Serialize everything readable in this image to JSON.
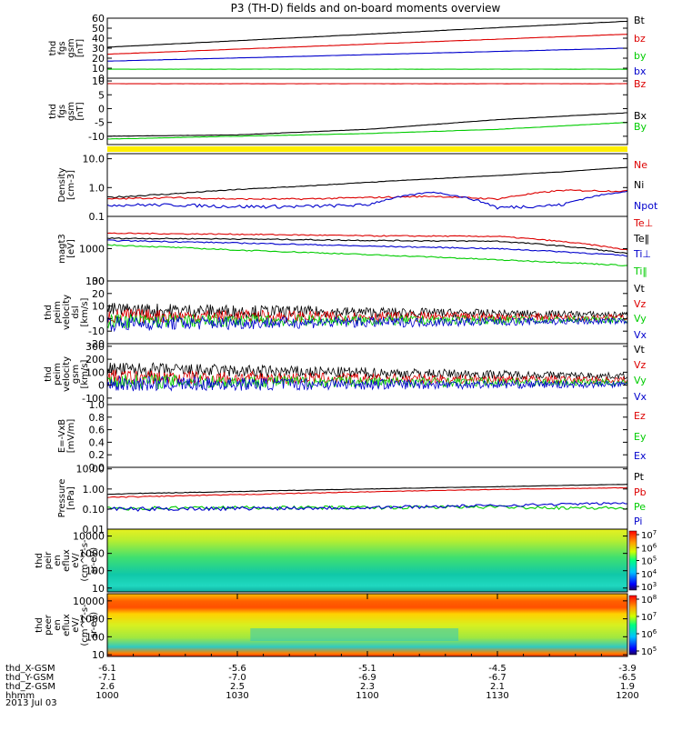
{
  "title": "P3 (TH-D) fields and on-board moments overview",
  "colors": {
    "black": "#000000",
    "red": "#dd0000",
    "green": "#00cc00",
    "blue": "#0000cc",
    "yellow": "#ffee00"
  },
  "chart_data": [
    {
      "type": "line",
      "panel": "fgs-magnitude",
      "ylabel": [
        "thd",
        "fgs",
        "gsm",
        "[nT]"
      ],
      "ylim": [
        0,
        60
      ],
      "yticks": [
        "0",
        "10",
        "20",
        "30",
        "40",
        "50",
        "60"
      ],
      "legend": [
        "Bt",
        "bz",
        "by",
        "bx"
      ],
      "x": [
        10.0,
        12.0
      ],
      "series": [
        {
          "name": "Bt",
          "values": [
            31,
            57
          ]
        },
        {
          "name": "bz",
          "values": [
            24,
            44
          ]
        },
        {
          "name": "bx",
          "values": [
            17,
            30
          ]
        },
        {
          "name": "by",
          "values": [
            9,
            9
          ]
        }
      ]
    },
    {
      "type": "line",
      "panel": "fgs-despun",
      "ylabel": [
        "thd",
        "fgs",
        "gsm",
        "[nT]"
      ],
      "ylim": [
        -13,
        11
      ],
      "yticks": [
        "-10",
        "-5",
        "0",
        "5",
        "10"
      ],
      "legend": [
        "Bz",
        "Bx",
        "By"
      ],
      "x": [
        10.0,
        10.5,
        11.0,
        11.5,
        12.0
      ],
      "series": [
        {
          "name": "Bz",
          "values": [
            9,
            9,
            9,
            9,
            9
          ]
        },
        {
          "name": "Bx",
          "values": [
            -10,
            -9.5,
            -7.5,
            -4,
            -1.5
          ]
        },
        {
          "name": "By",
          "values": [
            -11,
            -10,
            -9,
            -7.5,
            -5
          ]
        }
      ]
    },
    {
      "type": "line",
      "panel": "density",
      "yscale": "log",
      "ylabel": [
        "Density",
        "[cm-3]"
      ],
      "ylim": [
        0.1,
        15
      ],
      "yticks": [
        "0.1",
        "1.0",
        "10.0"
      ],
      "legend": [
        "Ne",
        "Ni",
        "Npot"
      ],
      "x": [
        10.0,
        10.25,
        10.5,
        10.75,
        11.0,
        11.25,
        11.5,
        11.75,
        12.0
      ],
      "series": [
        {
          "name": "Ni",
          "values": [
            0.45,
            0.6,
            0.85,
            1.1,
            1.5,
            2.0,
            2.6,
            3.5,
            5.0
          ]
        },
        {
          "name": "Ne",
          "values": [
            0.4,
            0.45,
            0.4,
            0.4,
            0.45,
            0.5,
            0.4,
            0.8,
            0.75
          ]
        },
        {
          "name": "Npot",
          "values": [
            0.25,
            0.25,
            0.22,
            0.22,
            0.25,
            0.7,
            0.2,
            0.25,
            0.75
          ]
        }
      ]
    },
    {
      "type": "line",
      "panel": "temperature",
      "yscale": "log",
      "ylabel": [
        "magt3",
        "[eV]"
      ],
      "ylim": [
        100,
        10000
      ],
      "yticks": [
        "100",
        "1000"
      ],
      "legend": [
        "Te⊥",
        "Te‖",
        "Ti⊥",
        "Ti‖"
      ],
      "x": [
        10.0,
        10.5,
        11.0,
        11.5,
        12.0
      ],
      "series": [
        {
          "name": "Te⊥",
          "values": [
            3000,
            2800,
            2500,
            2400,
            900
          ]
        },
        {
          "name": "Te‖",
          "values": [
            2100,
            2000,
            1800,
            1700,
            700
          ]
        },
        {
          "name": "Ti⊥",
          "values": [
            1800,
            1500,
            1200,
            1000,
            600
          ]
        },
        {
          "name": "Ti‖",
          "values": [
            1300,
            900,
            650,
            450,
            300
          ]
        }
      ]
    },
    {
      "type": "line",
      "panel": "velocity-dsl",
      "ylabel": [
        "thd",
        "peim",
        "velocity",
        "dsl",
        "[km/s]"
      ],
      "ylim": [
        -20,
        30
      ],
      "yticks": [
        "-20",
        "-10",
        "0",
        "10",
        "20",
        "30"
      ],
      "legend": [
        "Vt",
        "Vz",
        "Vy",
        "Vx"
      ],
      "x": [
        10.0,
        12.0
      ],
      "series": [
        {
          "name": "Vt",
          "values": [
            7,
            3
          ]
        },
        {
          "name": "Vz",
          "values": [
            2,
            1
          ]
        },
        {
          "name": "Vy",
          "values": [
            -2,
            -1
          ]
        },
        {
          "name": "Vx",
          "values": [
            -4,
            -2
          ]
        }
      ]
    },
    {
      "type": "line",
      "panel": "velocity-gsm",
      "ylabel": [
        "thd",
        "peim",
        "velocity",
        "gsm",
        "[km/s]"
      ],
      "ylim": [
        -150,
        320
      ],
      "yticks": [
        "-100",
        "0",
        "100",
        "200",
        "300"
      ],
      "legend": [
        "Vt",
        "Vz",
        "Vy",
        "Vx"
      ],
      "x": [
        10.0,
        12.0
      ],
      "series": [
        {
          "name": "Vt",
          "values": [
            120,
            70
          ]
        },
        {
          "name": "Vz",
          "values": [
            60,
            40
          ]
        },
        {
          "name": "Vy",
          "values": [
            30,
            20
          ]
        },
        {
          "name": "Vx",
          "values": [
            10,
            5
          ]
        }
      ]
    },
    {
      "type": "line",
      "panel": "e-field",
      "ylabel": [
        "E=-VxB",
        "[mV/m]"
      ],
      "ylim": [
        0,
        1
      ],
      "yticks": [
        "0.0",
        "0.2",
        "0.4",
        "0.6",
        "0.8",
        "1.0"
      ],
      "legend": [
        "Ez",
        "Ey",
        "Ex"
      ],
      "series": []
    },
    {
      "type": "line",
      "panel": "pressure",
      "yscale": "log",
      "ylabel": [
        "Pressure",
        "[nPa]"
      ],
      "ylim": [
        0.01,
        12
      ],
      "yticks": [
        "0.01",
        "0.10",
        "1.00",
        "10.00"
      ],
      "legend": [
        "Pt",
        "Pb",
        "Pe",
        "Pi"
      ],
      "x": [
        10.0,
        10.5,
        11.0,
        11.5,
        12.0
      ],
      "series": [
        {
          "name": "Pt",
          "values": [
            0.55,
            0.75,
            1.0,
            1.3,
            1.7
          ]
        },
        {
          "name": "Pb",
          "values": [
            0.38,
            0.52,
            0.72,
            0.95,
            1.15
          ]
        },
        {
          "name": "Pe",
          "values": [
            0.11,
            0.12,
            0.12,
            0.13,
            0.11
          ]
        },
        {
          "name": "Pi",
          "values": [
            0.1,
            0.11,
            0.12,
            0.15,
            0.2
          ]
        }
      ]
    },
    {
      "type": "heatmap",
      "panel": "ion-spectrogram",
      "ylabel": [
        "thd",
        "peir",
        "en",
        "eflux",
        "eV/",
        "(cm^2-s-",
        "sr-eV)"
      ],
      "yscale": "log",
      "ylim": [
        6,
        25000
      ],
      "yticks": [
        "10",
        "100",
        "1000",
        "10000"
      ],
      "colorbar_ticks": [
        "10^3",
        "10^4",
        "10^5",
        "10^6",
        "10^7"
      ]
    },
    {
      "type": "heatmap",
      "panel": "electron-spectrogram",
      "ylabel": [
        "thd",
        "peer",
        "en",
        "eflux",
        "eV/",
        "(cm^2-s-",
        "sr-eV)"
      ],
      "yscale": "log",
      "ylim": [
        8,
        25000
      ],
      "yticks": [
        "10",
        "100",
        "1000",
        "10000"
      ],
      "colorbar_ticks": [
        "10^5",
        "10^6",
        "10^7",
        "10^8"
      ]
    }
  ],
  "x_axis": {
    "rows": [
      {
        "label": "thd_X-GSM",
        "values": [
          "-6.1",
          "-5.6",
          "-5.1",
          "-4.5",
          "-3.9"
        ]
      },
      {
        "label": "thd_Y-GSM",
        "values": [
          "-7.1",
          "-7.0",
          "-6.9",
          "-6.7",
          "-6.5"
        ]
      },
      {
        "label": "thd_Z-GSM",
        "values": [
          "2.6",
          "2.5",
          "2.3",
          "2.1",
          "1.9"
        ]
      },
      {
        "label": "hhmm",
        "values": [
          "1000",
          "1030",
          "1100",
          "1130",
          "1200"
        ]
      }
    ],
    "date": "2013 Jul 03"
  }
}
